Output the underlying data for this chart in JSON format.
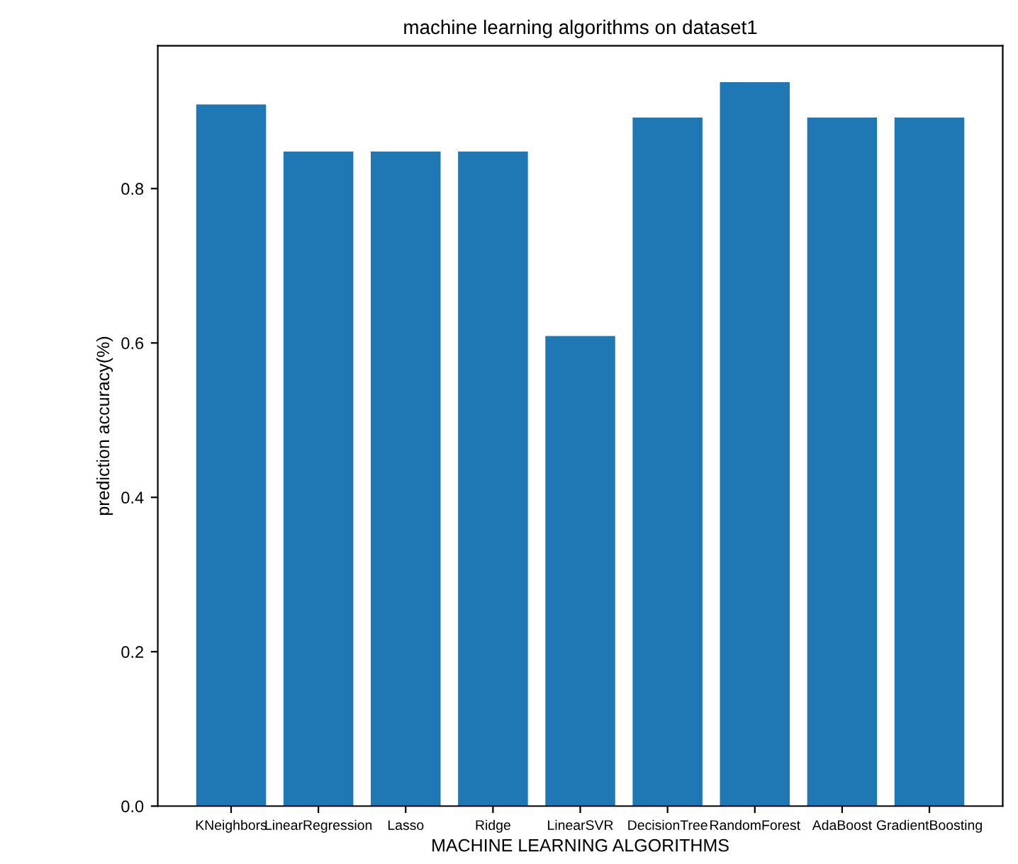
{
  "chart_data": {
    "type": "bar",
    "title": "machine learning algorithms on dataset1",
    "xlabel": "MACHINE LEARNING ALGORITHMS",
    "ylabel": "prediction accuracy(%)",
    "categories": [
      "KNeighbors",
      "LinearRegression",
      "Lasso",
      "Ridge",
      "LinearSVR",
      "DecisionTree",
      "RandomForest",
      "AdaBoost",
      "GradientBoosting"
    ],
    "values": [
      0.909,
      0.848,
      0.848,
      0.848,
      0.609,
      0.892,
      0.938,
      0.892,
      0.892
    ],
    "color": "#1f77b4",
    "ylim": [
      0,
      0.985
    ],
    "yticks": [
      {
        "value": 0,
        "label": "0.0"
      },
      0.2,
      0.4,
      0.6,
      0.8
    ],
    "grid": false,
    "legend": false
  }
}
